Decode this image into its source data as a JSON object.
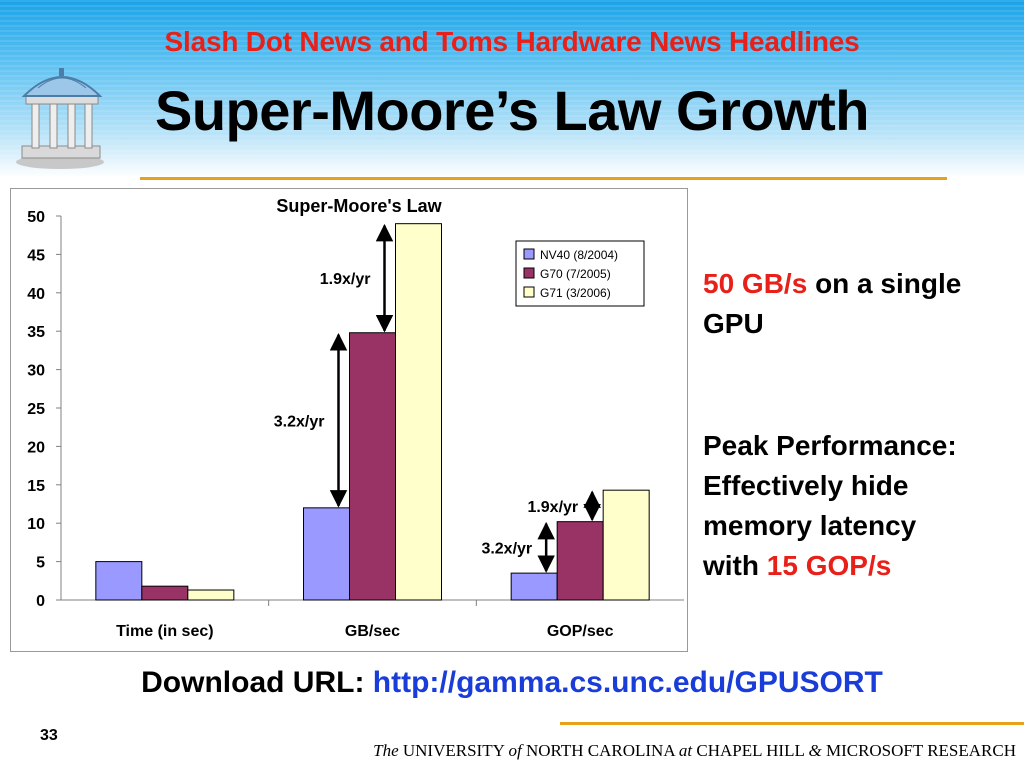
{
  "slide": {
    "headline": "Slash Dot News and Toms Hardware News Headlines",
    "title": "Super-Moore’s Law Growth",
    "logo_icon": "old-well-icon",
    "page_number": "33",
    "colors": {
      "headline": "#e8201a",
      "accent_rule": "#e8a21a",
      "link": "#1a3cd8",
      "highlight": "#e8201a"
    }
  },
  "side_notes": {
    "bandwidth_value": "50 GB/s",
    "bandwidth_rest": "on a single GPU",
    "peak_line1": "Peak Performance:",
    "peak_line2": "Effectively hide",
    "peak_line3": "memory latency",
    "peak_with": "with",
    "peak_value": "15 GOP/s"
  },
  "download": {
    "label": "Download URL:",
    "url": "http://gamma.cs.unc.edu/GPUSORT"
  },
  "footer": {
    "the": "The",
    "university": "UNIVERSITY",
    "of": "of",
    "north_carolina": "NORTH CAROLINA",
    "at": "at",
    "chapel_hill": "CHAPEL HILL",
    "amp": "&",
    "microsoft": "MICROSOFT RESEARCH"
  },
  "chart_data": {
    "type": "bar",
    "title": "Super-Moore's Law",
    "categories": [
      "Time (in sec)",
      "GB/sec",
      "GOP/sec"
    ],
    "series": [
      {
        "name": "NV40 (8/2004)",
        "values": [
          5,
          12,
          3.5
        ],
        "color": "#9999ff"
      },
      {
        "name": "G70 (7/2005)",
        "values": [
          1.8,
          34.8,
          10.2
        ],
        "color": "#993366"
      },
      {
        "name": "G71 (3/2006)",
        "values": [
          1.3,
          49,
          14.3
        ],
        "color": "#ffffcc"
      }
    ],
    "ylim": [
      0,
      50
    ],
    "yticks": [
      "0",
      "5",
      "10",
      "15",
      "20",
      "25",
      "30",
      "35",
      "40",
      "45",
      "50"
    ],
    "legend_position": "top-right",
    "grid": false,
    "annotations": [
      {
        "text": "1.9x/yr",
        "category": 1,
        "from_series": 1,
        "to_series": 2
      },
      {
        "text": "3.2x/yr",
        "category": 1,
        "from_series": 0,
        "to_series": 1
      },
      {
        "text": "1.9x/yr",
        "category": 2,
        "from_series": 1,
        "to_series": 2
      },
      {
        "text": "3.2x/yr",
        "category": 2,
        "from_series": 0,
        "to_series": 1
      }
    ]
  }
}
